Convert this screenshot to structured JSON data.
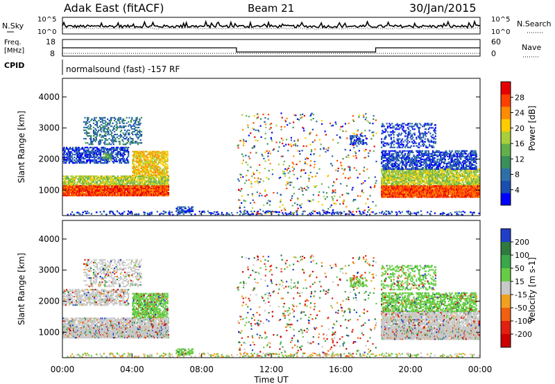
{
  "header": {
    "station": "Adak East (fitACF)",
    "beam": "Beam 21",
    "date": "30/Jan/2015"
  },
  "noise_panel": {
    "left_label": "N.Sky",
    "right_label": "N.Search",
    "left_ticks": [
      "10^5",
      "10^0"
    ],
    "right_ticks": [
      "10^5",
      "10^0"
    ]
  },
  "freq_panel": {
    "left_label_1": "Freq.",
    "left_label_2": "[MHz]",
    "right_label": "Nave",
    "left_ticks": [
      "18",
      "8"
    ],
    "right_ticks": [
      "60",
      "0"
    ],
    "freq_steps": [
      {
        "from_hour": 0,
        "to_hour": 10,
        "mhz": 14
      },
      {
        "from_hour": 10,
        "to_hour": 18,
        "mhz": 11
      },
      {
        "from_hour": 18,
        "to_hour": 24,
        "mhz": 14
      }
    ],
    "nave_level": 10
  },
  "cpid": {
    "label": "CPID",
    "text": "normalsound (fast) -157 RF"
  },
  "chart_data": [
    {
      "type": "heatmap",
      "name": "Power",
      "ylabel": "Slant Range [km]",
      "xlabel": "Time UT",
      "x_ticks": [
        "00:00",
        "04:00",
        "08:00",
        "12:00",
        "16:00",
        "20:00",
        "00:00"
      ],
      "y_ticks": [
        "1000",
        "2000",
        "3000",
        "4000"
      ],
      "ylim_km": [
        180,
        4600
      ],
      "xlim_hours": [
        0,
        24
      ],
      "colorbar": {
        "label": "Power [dB]",
        "ticks": [
          "4",
          "8",
          "12",
          "16",
          "20",
          "24",
          "28"
        ],
        "colors": [
          "#0000ff",
          "#1a4fb0",
          "#2f6fa8",
          "#3a8f5a",
          "#62b04b",
          "#a8cf3a",
          "#ffcc00",
          "#ff8c00",
          "#ff4000",
          "#e60000"
        ]
      }
    },
    {
      "type": "heatmap",
      "name": "Velocity",
      "ylabel": "Slant Range [km]",
      "xlabel": "Time UT",
      "x_ticks": [
        "00:00",
        "04:00",
        "08:00",
        "12:00",
        "16:00",
        "20:00",
        "00:00"
      ],
      "y_ticks": [
        "1000",
        "2000",
        "3000",
        "4000"
      ],
      "ylim_km": [
        180,
        4600
      ],
      "xlim_hours": [
        0,
        24
      ],
      "colorbar": {
        "label": "Velocity [m s-1]",
        "ticks": [
          "200",
          "100",
          "50",
          "15",
          "-15",
          "-50",
          "-100",
          "-200"
        ],
        "colors": [
          "#1f3fc8",
          "#2e7a3e",
          "#3aa84a",
          "#66cc44",
          "#c8c8c8",
          "#f0a020",
          "#f06010",
          "#e02010",
          "#cc0000"
        ]
      }
    }
  ]
}
